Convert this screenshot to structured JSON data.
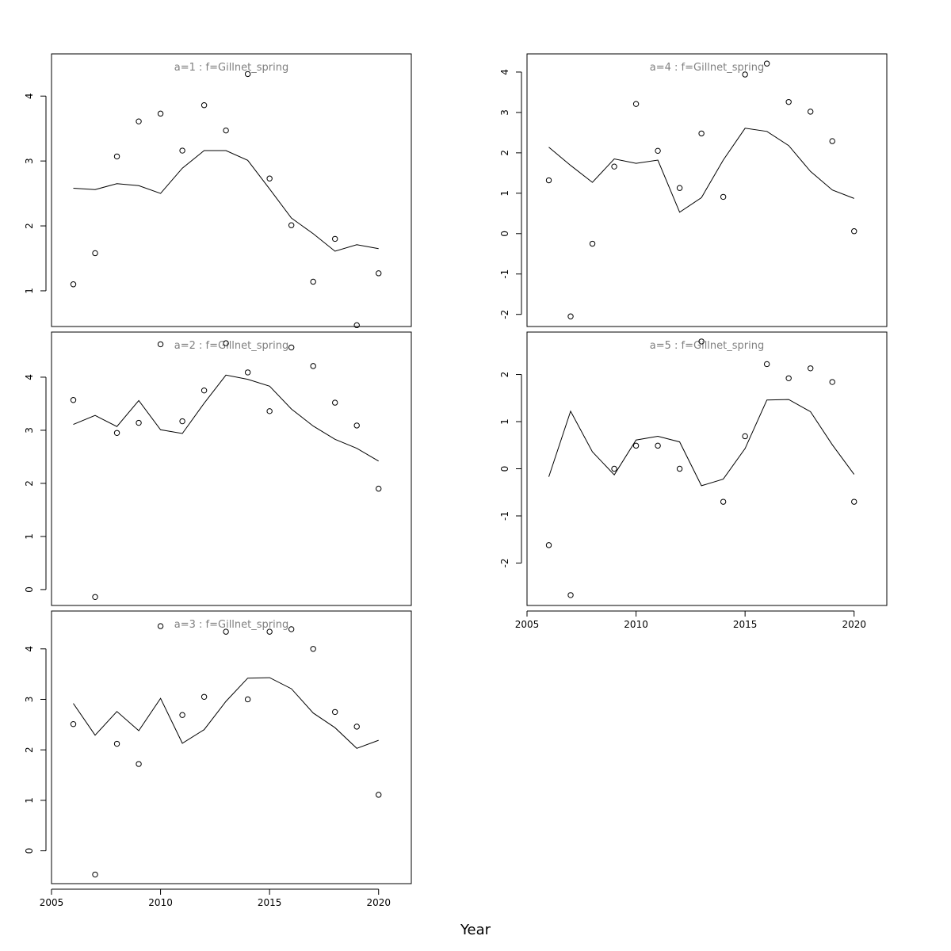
{
  "figure": {
    "xlabel": "Year"
  },
  "chart_data": [
    {
      "type": "line",
      "title": "a=1 : f=Gillnet_spring",
      "xlim": [
        2005,
        2021.5
      ],
      "ylim": [
        0.45,
        4.65
      ],
      "yticks": [
        1,
        2,
        3,
        4
      ],
      "xticks": [],
      "x": [
        2006,
        2007,
        2008,
        2009,
        2010,
        2011,
        2012,
        2013,
        2014,
        2015,
        2016,
        2017,
        2018,
        2019,
        2020
      ],
      "series": [
        {
          "kind": "points",
          "values": [
            1.1,
            1.58,
            3.07,
            3.61,
            3.73,
            3.16,
            3.86,
            3.47,
            4.34,
            2.73,
            2.01,
            1.14,
            1.8,
            0.47,
            1.27
          ]
        },
        {
          "kind": "line",
          "values": [
            2.58,
            2.56,
            2.65,
            2.62,
            2.5,
            2.89,
            3.16,
            3.16,
            3.01,
            2.57,
            2.12,
            1.88,
            1.61,
            1.71,
            1.65
          ]
        }
      ]
    },
    {
      "type": "line",
      "title": "a=2 : f=Gillnet_spring",
      "xlim": [
        2005,
        2021.5
      ],
      "ylim": [
        -0.3,
        4.85
      ],
      "yticks": [
        0,
        1,
        2,
        3,
        4
      ],
      "xticks": [],
      "x": [
        2006,
        2007,
        2008,
        2009,
        2010,
        2011,
        2012,
        2013,
        2014,
        2015,
        2016,
        2017,
        2018,
        2019,
        2020
      ],
      "series": [
        {
          "kind": "points",
          "values": [
            3.57,
            -0.14,
            2.95,
            3.14,
            4.62,
            3.17,
            3.75,
            4.64,
            4.09,
            3.36,
            4.56,
            4.21,
            3.52,
            3.09,
            1.9
          ]
        },
        {
          "kind": "line",
          "values": [
            3.11,
            3.28,
            3.07,
            3.56,
            3.01,
            2.94,
            3.51,
            4.04,
            3.96,
            3.83,
            3.4,
            3.08,
            2.83,
            2.66,
            2.42
          ]
        }
      ]
    },
    {
      "type": "line",
      "title": "a=3 : f=Gillnet_spring",
      "xlim": [
        2005,
        2021.5
      ],
      "ylim": [
        -0.65,
        4.75
      ],
      "yticks": [
        0,
        1,
        2,
        3,
        4
      ],
      "xticks": [
        2005,
        2010,
        2015,
        2020
      ],
      "x": [
        2006,
        2007,
        2008,
        2009,
        2010,
        2011,
        2012,
        2013,
        2014,
        2015,
        2016,
        2017,
        2018,
        2019,
        2020
      ],
      "series": [
        {
          "kind": "points",
          "values": [
            2.51,
            -0.47,
            2.12,
            1.72,
            4.45,
            2.69,
            3.05,
            4.34,
            3.0,
            4.34,
            4.39,
            4.0,
            2.75,
            2.46,
            1.11
          ]
        },
        {
          "kind": "line",
          "values": [
            2.92,
            2.29,
            2.76,
            2.38,
            3.02,
            2.13,
            2.4,
            2.96,
            3.42,
            3.43,
            3.21,
            2.73,
            2.44,
            2.03,
            2.19
          ]
        }
      ]
    },
    {
      "type": "line",
      "title": "a=4 : f=Gillnet_spring",
      "xlim": [
        2005,
        2021.5
      ],
      "ylim": [
        -2.3,
        4.45
      ],
      "yticks": [
        -2,
        -1,
        0,
        1,
        2,
        3,
        4
      ],
      "xticks": [],
      "x": [
        2006,
        2007,
        2008,
        2009,
        2010,
        2011,
        2012,
        2013,
        2014,
        2015,
        2016,
        2017,
        2018,
        2019,
        2020
      ],
      "series": [
        {
          "kind": "points",
          "values": [
            1.32,
            -2.05,
            -0.25,
            1.66,
            3.21,
            2.05,
            1.13,
            2.48,
            0.91,
            3.94,
            4.21,
            3.26,
            3.02,
            2.29,
            0.06
          ]
        },
        {
          "kind": "line",
          "values": [
            2.14,
            1.69,
            1.27,
            1.85,
            1.74,
            1.82,
            0.53,
            0.89,
            1.82,
            2.61,
            2.53,
            2.18,
            1.54,
            1.08,
            0.87
          ]
        }
      ]
    },
    {
      "type": "line",
      "title": "a=5 : f=Gillnet_spring",
      "xlim": [
        2005,
        2021.5
      ],
      "ylim": [
        -2.9,
        2.9
      ],
      "yticks": [
        -2,
        -1,
        0,
        1,
        2
      ],
      "xticks": [
        2005,
        2010,
        2015,
        2020
      ],
      "x": [
        2006,
        2007,
        2008,
        2009,
        2010,
        2011,
        2012,
        2013,
        2014,
        2015,
        2016,
        2017,
        2018,
        2019,
        2020
      ],
      "series": [
        {
          "kind": "points",
          "values": [
            -1.62,
            -2.68,
            null,
            0.0,
            0.49,
            0.49,
            0.0,
            2.7,
            -0.7,
            0.69,
            2.22,
            1.92,
            2.13,
            1.84,
            -0.7
          ]
        },
        {
          "kind": "line",
          "values": [
            -0.17,
            1.22,
            0.36,
            -0.13,
            0.61,
            0.69,
            0.57,
            -0.36,
            -0.22,
            0.43,
            1.46,
            1.47,
            1.21,
            0.51,
            -0.12
          ]
        }
      ]
    }
  ]
}
